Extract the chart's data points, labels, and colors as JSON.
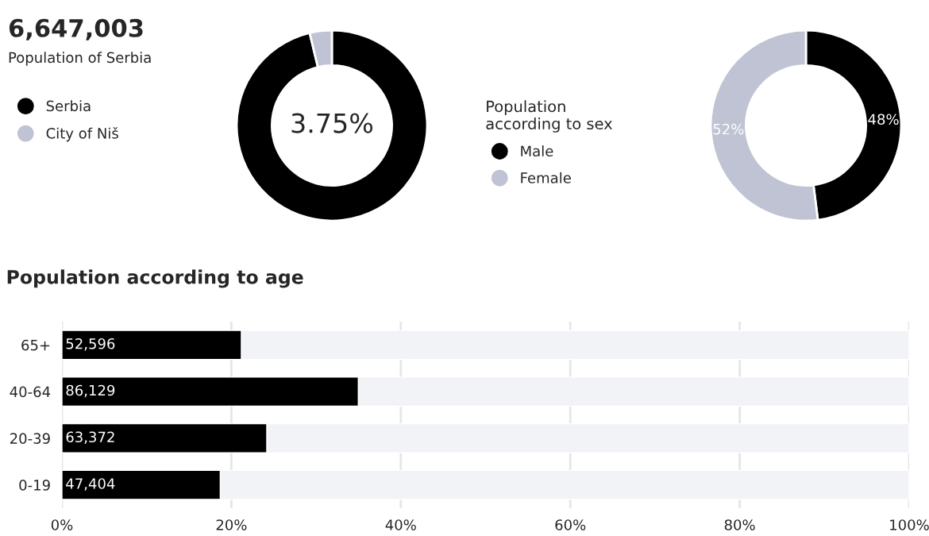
{
  "chart_data": [
    {
      "type": "donut",
      "title": "6,647,003",
      "subtitle": "Population of Serbia",
      "categories": [
        "Serbia",
        "City of Niš"
      ],
      "values": [
        96.25,
        3.75
      ],
      "colors": [
        "#000000",
        "#bfc3d3"
      ],
      "legend": "left",
      "annotations": [
        "3.75%"
      ]
    },
    {
      "type": "donut",
      "legend_title": "Population according to sex",
      "categories": [
        "Male",
        "Female"
      ],
      "values": [
        48,
        52
      ],
      "colors": [
        "#000000",
        "#bfc3d3"
      ],
      "legend": "left",
      "value_labels": [
        "48%",
        "52%"
      ]
    },
    {
      "type": "bar",
      "orientation": "horizontal",
      "stacked": true,
      "title": "Population according to age",
      "categories": [
        "65+",
        "40-64",
        "20-39",
        "0-19"
      ],
      "series": [
        {
          "color": "#000000",
          "values": [
            21.2,
            35.0,
            24.2,
            18.7
          ]
        },
        {
          "color": "#f2f3f7",
          "values": [
            78.8,
            65.0,
            75.8,
            81.3
          ]
        }
      ],
      "annotations": [
        "52,596",
        "86,129",
        "63,372",
        "47,404"
      ],
      "xlim": [
        0,
        100
      ],
      "xticks": [
        {
          "value": 0,
          "label": "0%"
        },
        {
          "value": 20,
          "label": "20%"
        },
        {
          "value": 40,
          "label": "40%"
        },
        {
          "value": 60,
          "label": "60%"
        },
        {
          "value": 80,
          "label": "80%"
        },
        {
          "value": 100,
          "label": "100%"
        }
      ],
      "grid": "x"
    }
  ]
}
